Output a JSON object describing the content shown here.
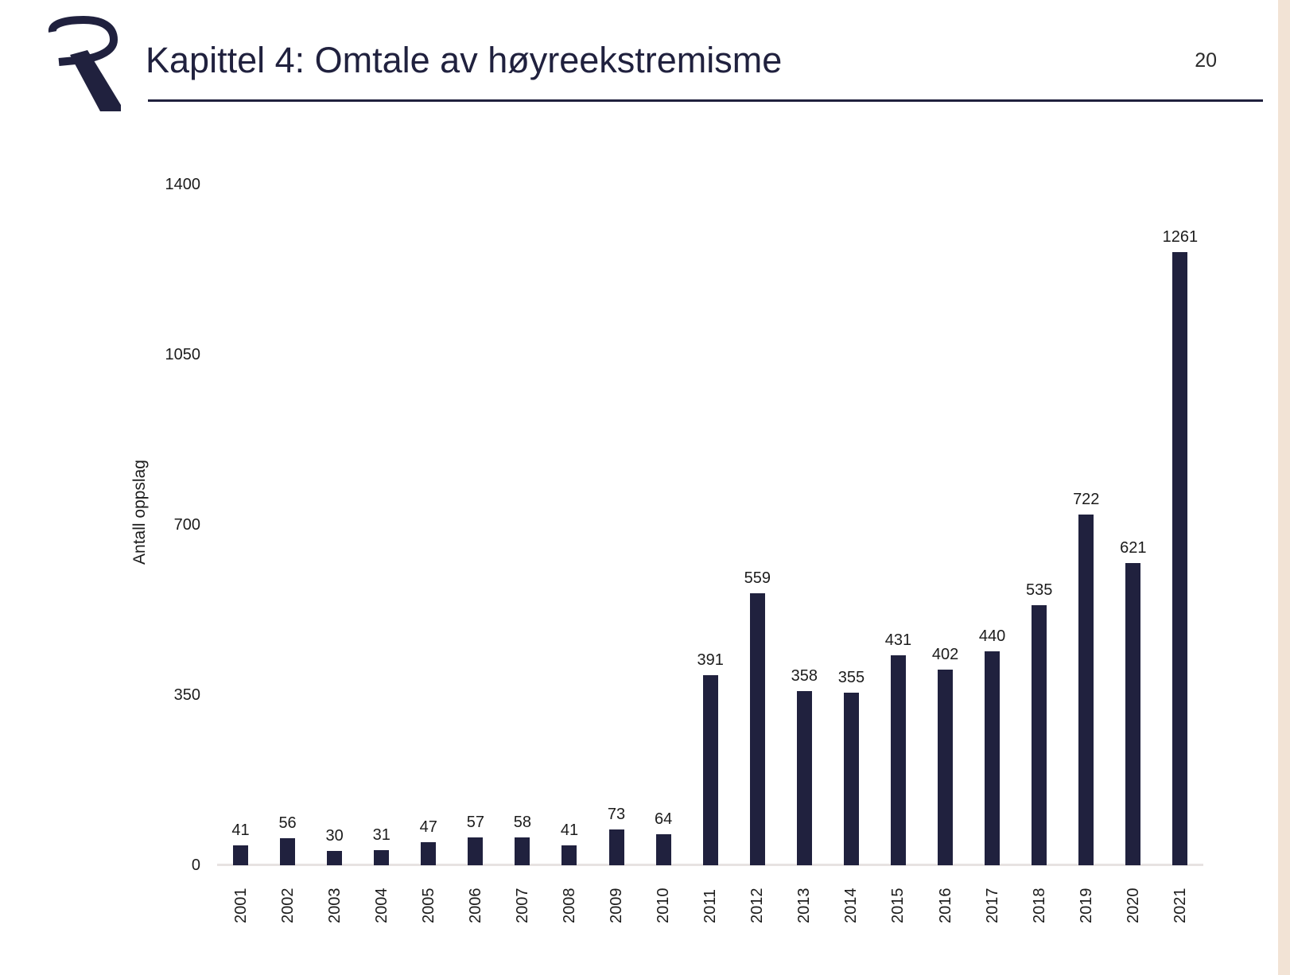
{
  "page": {
    "title": "Kapittel 4: Omtale av høyreekstremisme",
    "page_number": "20"
  },
  "colors": {
    "brand_navy": "#20213e",
    "bar": "#20213e",
    "axis_line": "#e7e3e2",
    "accent_strip": "#f2e3d5",
    "background": "#ffffff",
    "text": "#1c1c1c"
  },
  "chart_data": {
    "type": "bar",
    "categories": [
      "2001",
      "2002",
      "2003",
      "2004",
      "2005",
      "2006",
      "2007",
      "2008",
      "2009",
      "2010",
      "2011",
      "2012",
      "2013",
      "2014",
      "2015",
      "2016",
      "2017",
      "2018",
      "2019",
      "2020",
      "2021"
    ],
    "values": [
      41,
      56,
      30,
      31,
      47,
      57,
      58,
      41,
      73,
      64,
      391,
      559,
      358,
      355,
      431,
      402,
      440,
      535,
      722,
      621,
      1261
    ],
    "title": "",
    "xlabel": "",
    "ylabel": "Antall oppslag",
    "ylim": [
      0,
      1400
    ],
    "yticks": [
      0,
      350,
      700,
      1050,
      1400
    ],
    "grid": false,
    "bar_labels": true,
    "legend": null
  }
}
